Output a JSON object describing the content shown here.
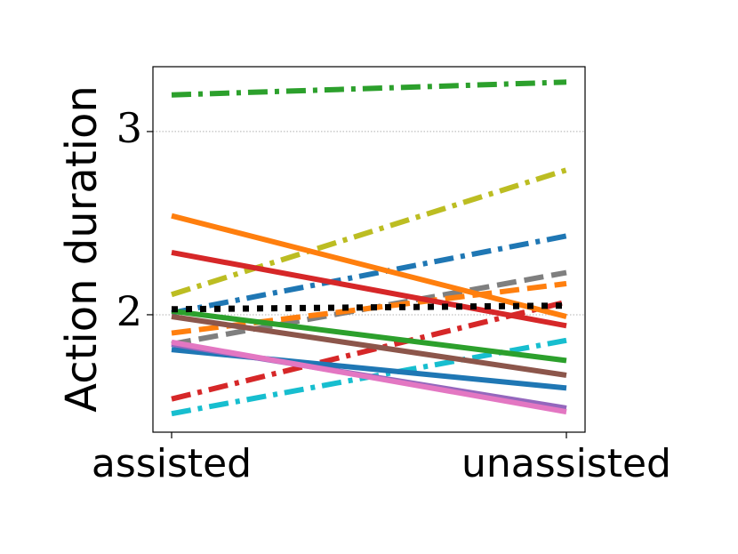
{
  "chart_data": {
    "type": "line",
    "ylabel": "Action duration",
    "categories": [
      "assisted",
      "unassisted"
    ],
    "ylim": [
      1.359,
      3.354
    ],
    "yticks": [
      2,
      3
    ],
    "grid": true,
    "series": [
      {
        "color": "#2ca02c",
        "dash": "dashdot",
        "values": [
          3.2,
          3.27
        ]
      },
      {
        "color": "#bcbd22",
        "dash": "dashdot",
        "values": [
          2.11,
          2.79
        ]
      },
      {
        "color": "#1f77b4",
        "dash": "dashdot",
        "values": [
          2.01,
          2.43
        ]
      },
      {
        "color": "#7f7f7f",
        "dash": "dashed",
        "values": [
          1.84,
          2.23
        ]
      },
      {
        "color": "#ff7f0e",
        "dash": "dashed",
        "values": [
          1.9,
          2.17
        ]
      },
      {
        "color": "#d62728",
        "dash": "dashdot",
        "values": [
          1.54,
          2.07
        ]
      },
      {
        "color": "#17becf",
        "dash": "dashdot",
        "values": [
          1.46,
          1.86
        ]
      },
      {
        "color": "#ff7f0e",
        "dash": "solid",
        "values": [
          2.54,
          1.99
        ]
      },
      {
        "color": "#d62728",
        "dash": "solid",
        "values": [
          2.34,
          1.94
        ]
      },
      {
        "color": "#2ca02c",
        "dash": "solid",
        "values": [
          2.02,
          1.75
        ]
      },
      {
        "color": "#8c564b",
        "dash": "solid",
        "values": [
          1.99,
          1.67
        ]
      },
      {
        "color": "#1f77b4",
        "dash": "solid",
        "values": [
          1.81,
          1.6
        ]
      },
      {
        "color": "#9467bd",
        "dash": "solid",
        "values": [
          1.84,
          1.49
        ]
      },
      {
        "color": "#e377c2",
        "dash": "solid",
        "values": [
          1.85,
          1.47
        ]
      },
      {
        "color": "#000000",
        "dash": "dotted",
        "values": [
          2.03,
          2.05
        ]
      }
    ]
  }
}
